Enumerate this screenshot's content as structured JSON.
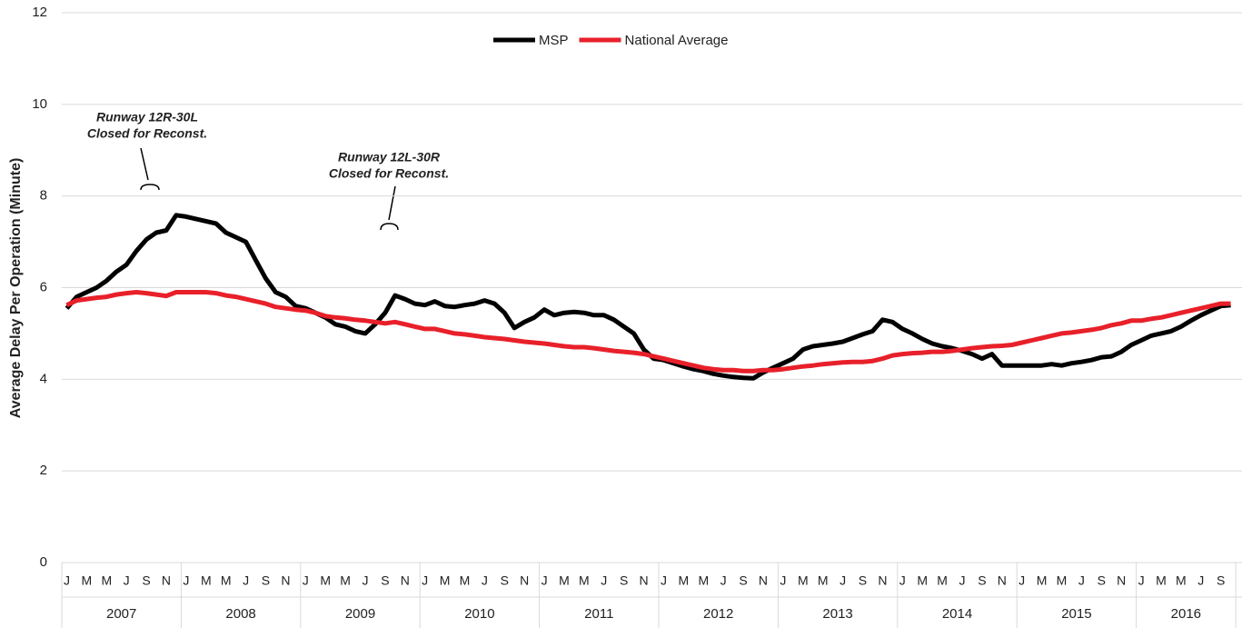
{
  "chart_data": {
    "type": "line",
    "y_label": "Average Delay Per Operation (Minute)",
    "ylim": [
      0,
      12
    ],
    "yticks": [
      0,
      2,
      4,
      6,
      8,
      10,
      12
    ],
    "grid": true,
    "legend": "top",
    "categories": [
      "J",
      null,
      "M",
      null,
      "M",
      null,
      "J",
      null,
      "S",
      null,
      "N",
      null,
      "J",
      null,
      "M",
      null,
      "M",
      null,
      "J",
      null,
      "S",
      null,
      "N",
      null,
      "J",
      null,
      "M",
      null,
      "M",
      null,
      "J",
      null,
      "S",
      null,
      "N",
      null,
      "J",
      null,
      "M",
      null,
      "M",
      null,
      "J",
      null,
      "S",
      null,
      "N",
      null,
      "J",
      null,
      "M",
      null,
      "M",
      null,
      "J",
      null,
      "S",
      null,
      "N",
      null,
      "J",
      null,
      "M",
      null,
      "M",
      null,
      "J",
      null,
      "S",
      null,
      "N",
      null,
      "J",
      null,
      "M",
      null,
      "M",
      null,
      "J",
      null,
      "S",
      null,
      "N",
      null,
      "J",
      null,
      "M",
      null,
      "M",
      null,
      "J",
      null,
      "S",
      null,
      "N",
      null,
      "J",
      null,
      "M",
      null,
      "M",
      null,
      "J",
      null,
      "S",
      null,
      "N",
      null,
      "J",
      null,
      "M",
      null,
      "M",
      null,
      "J",
      null,
      "S",
      null
    ],
    "category_groups": [
      {
        "label": "2007",
        "size": 12
      },
      {
        "label": "2008",
        "size": 12
      },
      {
        "label": "2009",
        "size": 12
      },
      {
        "label": "2010",
        "size": 12
      },
      {
        "label": "2011",
        "size": 12
      },
      {
        "label": "2012",
        "size": 12
      },
      {
        "label": "2013",
        "size": 12
      },
      {
        "label": "2014",
        "size": 12
      },
      {
        "label": "2015",
        "size": 12
      },
      {
        "label": "2016",
        "size": 10
      }
    ],
    "series": [
      {
        "name": "MSP",
        "color": "#000000",
        "values": [
          5.55,
          5.8,
          5.9,
          6.0,
          6.15,
          6.35,
          6.5,
          6.8,
          7.05,
          7.2,
          7.25,
          7.58,
          7.55,
          7.5,
          7.45,
          7.4,
          7.2,
          7.1,
          7.0,
          6.6,
          6.2,
          5.9,
          5.8,
          5.6,
          5.55,
          5.45,
          5.35,
          5.2,
          5.15,
          5.05,
          5.0,
          5.2,
          5.45,
          5.83,
          5.75,
          5.65,
          5.62,
          5.7,
          5.6,
          5.58,
          5.62,
          5.65,
          5.72,
          5.65,
          5.45,
          5.12,
          5.25,
          5.35,
          5.52,
          5.4,
          5.45,
          5.47,
          5.45,
          5.4,
          5.4,
          5.3,
          5.15,
          5.0,
          4.65,
          4.45,
          4.42,
          4.35,
          4.28,
          4.22,
          4.18,
          4.12,
          4.08,
          4.05,
          4.03,
          4.02,
          4.15,
          4.25,
          4.35,
          4.45,
          4.65,
          4.72,
          4.75,
          4.78,
          4.82,
          4.9,
          4.98,
          5.05,
          5.3,
          5.25,
          5.1,
          5.0,
          4.88,
          4.78,
          4.72,
          4.68,
          4.62,
          4.55,
          4.45,
          4.55,
          4.3,
          4.3,
          4.3,
          4.3,
          4.3,
          4.33,
          4.3,
          4.35,
          4.38,
          4.42,
          4.48,
          4.5,
          4.6,
          4.75,
          4.85,
          4.95,
          5.0,
          5.05,
          5.15,
          5.28,
          5.4,
          5.5,
          5.6,
          5.62
        ]
      },
      {
        "name": "National Average",
        "color": "#e8202a",
        "values": [
          5.62,
          5.72,
          5.75,
          5.78,
          5.8,
          5.85,
          5.88,
          5.9,
          5.88,
          5.85,
          5.82,
          5.9,
          5.9,
          5.9,
          5.9,
          5.88,
          5.83,
          5.8,
          5.75,
          5.7,
          5.65,
          5.58,
          5.55,
          5.52,
          5.5,
          5.45,
          5.38,
          5.35,
          5.33,
          5.3,
          5.28,
          5.25,
          5.22,
          5.25,
          5.2,
          5.15,
          5.1,
          5.1,
          5.05,
          5.0,
          4.98,
          4.95,
          4.92,
          4.9,
          4.88,
          4.85,
          4.82,
          4.8,
          4.78,
          4.75,
          4.72,
          4.7,
          4.7,
          4.68,
          4.65,
          4.62,
          4.6,
          4.58,
          4.55,
          4.5,
          4.45,
          4.4,
          4.35,
          4.3,
          4.25,
          4.22,
          4.2,
          4.2,
          4.18,
          4.18,
          4.2,
          4.2,
          4.22,
          4.25,
          4.28,
          4.3,
          4.33,
          4.35,
          4.37,
          4.38,
          4.38,
          4.4,
          4.45,
          4.52,
          4.55,
          4.57,
          4.58,
          4.6,
          4.6,
          4.62,
          4.65,
          4.68,
          4.7,
          4.72,
          4.73,
          4.75,
          4.8,
          4.85,
          4.9,
          4.95,
          5.0,
          5.02,
          5.05,
          5.08,
          5.12,
          5.18,
          5.22,
          5.28,
          5.28,
          5.32,
          5.35,
          5.4,
          5.45,
          5.5,
          5.55,
          5.6,
          5.65,
          5.65
        ]
      }
    ],
    "annotations": [
      {
        "lines": [
          "Runway 12R-30L",
          "Closed for Reconst."
        ]
      },
      {
        "lines": [
          "Runway 12L-30R",
          "Closed for Reconst."
        ]
      }
    ]
  }
}
